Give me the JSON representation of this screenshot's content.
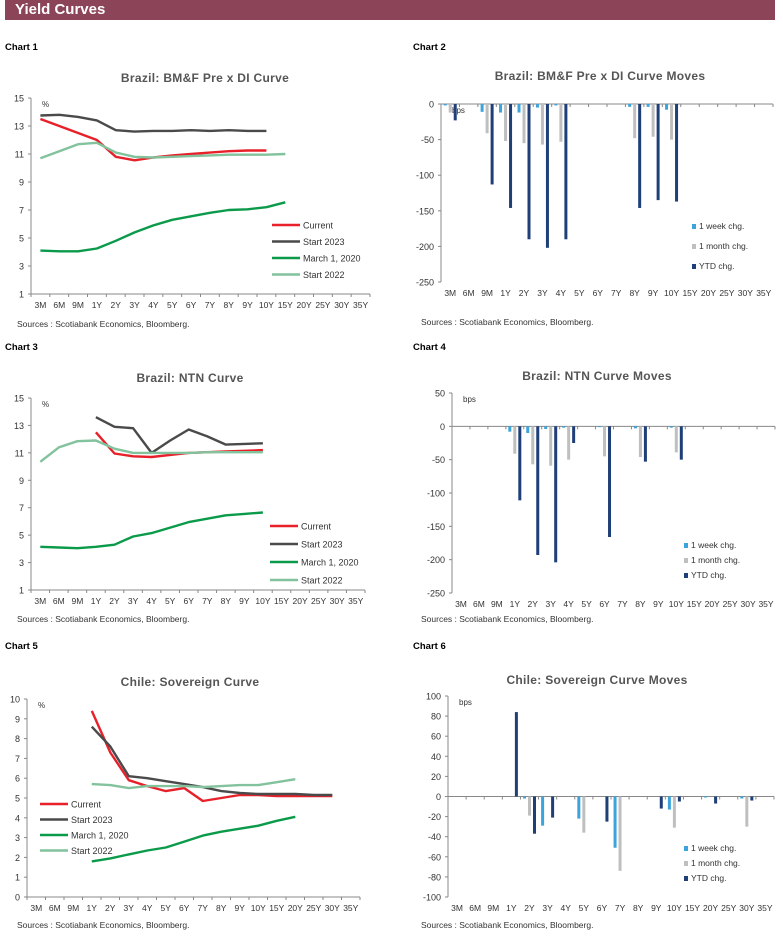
{
  "header": {
    "title": "Yield Curves",
    "bg_color": "#8B4458"
  },
  "panels": [
    {
      "label": "Chart 1"
    },
    {
      "label": "Chart 2"
    },
    {
      "label": "Chart 3"
    },
    {
      "label": "Chart 4"
    },
    {
      "label": "Chart 5"
    },
    {
      "label": "Chart 6"
    }
  ],
  "colors": {
    "Current": "#E8202A",
    "Start 2023": "#4A4A4A",
    "March 1, 2020": "#0A9A4A",
    "Start 2022": "#82C29C",
    "1 week chg.": "#3BA4DC",
    "1 month chg.": "#BFBFBF",
    "YTD chg.": "#1F3F78"
  },
  "chart_data": [
    {
      "type": "line",
      "title": "Brazil: BM&F Pre x DI Curve",
      "unit_label": "%",
      "source": "Sources : Scotiabank Economics, Bloomberg.",
      "ylim": [
        1,
        15
      ],
      "yticks": [
        1,
        3,
        5,
        7,
        9,
        11,
        13,
        15
      ],
      "grid": false,
      "legend": "right",
      "categories": [
        "3M",
        "6M",
        "9M",
        "1Y",
        "2Y",
        "3Y",
        "4Y",
        "5Y",
        "6Y",
        "7Y",
        "8Y",
        "9Y",
        "10Y",
        "15Y",
        "20Y",
        "25Y",
        "30Y",
        "35Y"
      ],
      "series": [
        {
          "name": "Current",
          "values": [
            13.5,
            13.0,
            12.5,
            12.0,
            10.8,
            10.55,
            10.75,
            10.9,
            11.0,
            11.1,
            11.2,
            11.25,
            11.25,
            null,
            null,
            null,
            null,
            null
          ]
        },
        {
          "name": "Start 2023",
          "values": [
            13.75,
            13.8,
            13.65,
            13.4,
            12.7,
            12.6,
            12.65,
            12.65,
            12.7,
            12.65,
            12.7,
            12.65,
            12.65,
            null,
            null,
            null,
            null,
            null
          ]
        },
        {
          "name": "March 1, 2020",
          "values": [
            4.1,
            4.05,
            4.05,
            4.25,
            4.8,
            5.4,
            5.9,
            6.3,
            6.55,
            6.8,
            7.0,
            7.05,
            7.2,
            7.55,
            null,
            null,
            null,
            null
          ]
        },
        {
          "name": "Start 2022",
          "values": [
            10.7,
            11.2,
            11.7,
            11.8,
            11.1,
            10.8,
            10.75,
            10.8,
            10.85,
            10.9,
            10.95,
            10.95,
            10.95,
            11.0,
            null,
            null,
            null,
            null
          ]
        }
      ]
    },
    {
      "type": "bar",
      "title": "Brazil: BM&F Pre x DI Curve Moves",
      "unit_label": "bps",
      "source": "Sources : Scotiabank Economics, Bloomberg.",
      "ylim": [
        -250,
        0
      ],
      "yticks": [
        -250,
        -200,
        -150,
        -100,
        -50,
        0
      ],
      "grid": false,
      "legend": "bottom-right",
      "categories": [
        "3M",
        "6M",
        "9M",
        "1Y",
        "2Y",
        "3Y",
        "4Y",
        "5Y",
        "6Y",
        "7Y",
        "8Y",
        "9Y",
        "10Y",
        "15Y",
        "20Y",
        "25Y",
        "30Y",
        "35Y"
      ],
      "series": [
        {
          "name": "1 week chg.",
          "values": [
            -2,
            null,
            -11,
            -12,
            -12,
            -5,
            -2,
            null,
            null,
            null,
            -4,
            -4,
            -8,
            null,
            null,
            null,
            null,
            null
          ]
        },
        {
          "name": "1 month chg.",
          "values": [
            -12,
            null,
            -41,
            -52,
            -55,
            -57,
            -53,
            null,
            null,
            null,
            -48,
            -46,
            -50,
            null,
            null,
            null,
            null,
            null
          ]
        },
        {
          "name": "YTD chg.",
          "values": [
            -23,
            null,
            -113,
            -146,
            -190,
            -202,
            -190,
            null,
            null,
            null,
            -146,
            -135,
            -137,
            null,
            null,
            null,
            null,
            null
          ]
        }
      ]
    },
    {
      "type": "line",
      "title": "Brazil: NTN Curve",
      "unit_label": "%",
      "source": "Sources : Scotiabank Economics, Bloomberg.",
      "ylim": [
        1,
        15
      ],
      "yticks": [
        1,
        3,
        5,
        7,
        9,
        11,
        13,
        15
      ],
      "grid": false,
      "legend": "right",
      "categories": [
        "3M",
        "6M",
        "9M",
        "1Y",
        "2Y",
        "3Y",
        "4Y",
        "5Y",
        "6Y",
        "7Y",
        "8Y",
        "9Y",
        "10Y",
        "15Y",
        "20Y",
        "25Y",
        "30Y",
        "35Y"
      ],
      "series": [
        {
          "name": "Current",
          "values": [
            null,
            null,
            null,
            12.5,
            10.95,
            10.75,
            10.7,
            10.85,
            11.0,
            11.05,
            11.1,
            11.15,
            11.2,
            null,
            null,
            null,
            null,
            null
          ]
        },
        {
          "name": "Start 2023",
          "values": [
            null,
            null,
            null,
            13.6,
            12.9,
            12.8,
            11.0,
            11.9,
            12.7,
            12.2,
            11.6,
            11.65,
            11.7,
            null,
            null,
            null,
            null,
            null
          ]
        },
        {
          "name": "March 1, 2020",
          "values": [
            4.15,
            4.1,
            4.05,
            4.15,
            4.3,
            4.9,
            5.15,
            5.55,
            5.95,
            6.2,
            6.45,
            6.55,
            6.65,
            null,
            null,
            null,
            null,
            null
          ]
        },
        {
          "name": "Start 2022",
          "values": [
            10.35,
            11.4,
            11.85,
            11.9,
            11.3,
            11.0,
            11.0,
            11.0,
            11.0,
            11.05,
            11.05,
            11.05,
            11.05,
            null,
            null,
            null,
            null,
            null
          ]
        }
      ]
    },
    {
      "type": "bar",
      "title": "Brazil: NTN Curve Moves",
      "unit_label": "bps",
      "source": "Sources : Scotiabank Economics, Bloomberg.",
      "ylim": [
        -250,
        50
      ],
      "yticks": [
        -250,
        -200,
        -150,
        -100,
        -50,
        0,
        50
      ],
      "grid": false,
      "legend": "bottom-right",
      "categories": [
        "3M",
        "6M",
        "9M",
        "1Y",
        "2Y",
        "3Y",
        "4Y",
        "5Y",
        "6Y",
        "7Y",
        "8Y",
        "9Y",
        "10Y",
        "15Y",
        "20Y",
        "25Y",
        "30Y",
        "35Y"
      ],
      "series": [
        {
          "name": "1 week chg.",
          "values": [
            null,
            null,
            null,
            -8,
            -10,
            -4,
            -2,
            null,
            0,
            null,
            -3,
            null,
            -2,
            null,
            null,
            null,
            null,
            null
          ]
        },
        {
          "name": "1 month chg.",
          "values": [
            null,
            null,
            null,
            -41,
            -57,
            -59,
            -50,
            null,
            -45,
            null,
            -46,
            null,
            -39,
            null,
            null,
            null,
            null,
            null
          ]
        },
        {
          "name": "YTD chg.",
          "values": [
            null,
            null,
            null,
            -111,
            -193,
            -204,
            -25,
            null,
            -166,
            null,
            -53,
            null,
            -50,
            null,
            null,
            null,
            null,
            null
          ]
        }
      ]
    },
    {
      "type": "line",
      "title": "Chile: Sovereign Curve",
      "unit_label": "%",
      "source": "Sources : Scotiabank Economics, Bloomberg.",
      "ylim": [
        0,
        10
      ],
      "yticks": [
        0,
        1,
        2,
        3,
        4,
        5,
        6,
        7,
        8,
        9,
        10
      ],
      "grid": false,
      "legend": "left",
      "categories": [
        "3M",
        "6M",
        "9M",
        "1Y",
        "2Y",
        "3Y",
        "4Y",
        "5Y",
        "6Y",
        "7Y",
        "8Y",
        "9Y",
        "10Y",
        "15Y",
        "20Y",
        "25Y",
        "30Y",
        "35Y"
      ],
      "series": [
        {
          "name": "Current",
          "values": [
            null,
            null,
            null,
            9.4,
            7.3,
            5.9,
            5.6,
            5.35,
            5.5,
            4.85,
            5.0,
            5.15,
            5.15,
            5.1,
            5.1,
            5.1,
            5.1,
            null
          ]
        },
        {
          "name": "Start 2023",
          "values": [
            null,
            null,
            null,
            8.6,
            7.6,
            6.1,
            6.0,
            5.85,
            5.7,
            5.55,
            5.35,
            5.25,
            5.2,
            5.2,
            5.2,
            5.15,
            5.15,
            null
          ]
        },
        {
          "name": "March 1, 2020",
          "values": [
            null,
            null,
            null,
            1.8,
            1.95,
            2.15,
            2.35,
            2.5,
            2.8,
            3.1,
            3.3,
            3.45,
            3.6,
            3.85,
            4.05,
            null,
            null,
            null
          ]
        },
        {
          "name": "Start 2022",
          "values": [
            null,
            null,
            null,
            5.7,
            5.65,
            5.5,
            5.6,
            5.6,
            5.6,
            5.55,
            5.6,
            5.65,
            5.65,
            5.8,
            5.95,
            null,
            null,
            null
          ]
        }
      ]
    },
    {
      "type": "bar",
      "title": "Chile: Sovereign Curve Moves",
      "unit_label": "bps",
      "source": "Sources : Scotiabank Economics, Bloomberg.",
      "ylim": [
        -100,
        100
      ],
      "yticks": [
        -100,
        -80,
        -60,
        -40,
        -20,
        0,
        20,
        40,
        60,
        80,
        100
      ],
      "grid": false,
      "legend": "bottom-right",
      "categories": [
        "3M",
        "6M",
        "9M",
        "1Y",
        "2Y",
        "3Y",
        "4Y",
        "5Y",
        "6Y",
        "7Y",
        "8Y",
        "9Y",
        "10Y",
        "15Y",
        "20Y",
        "25Y",
        "30Y",
        "35Y"
      ],
      "series": [
        {
          "name": "1 week chg.",
          "values": [
            null,
            null,
            null,
            null,
            -2,
            -29,
            null,
            -22,
            null,
            -51,
            null,
            null,
            -13,
            null,
            -1,
            null,
            -2,
            null
          ]
        },
        {
          "name": "1 month chg.",
          "values": [
            null,
            null,
            null,
            null,
            -19,
            null,
            null,
            -36,
            null,
            -74,
            null,
            null,
            -31,
            null,
            null,
            null,
            -30,
            null
          ]
        },
        {
          "name": "YTD chg.",
          "values": [
            null,
            null,
            null,
            84,
            -37,
            -21,
            null,
            null,
            -25,
            null,
            null,
            -12,
            -5,
            null,
            -7,
            null,
            -4,
            null
          ]
        }
      ]
    }
  ]
}
